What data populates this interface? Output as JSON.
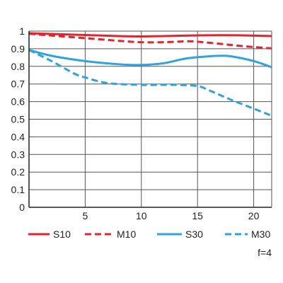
{
  "chart_data": {
    "type": "line",
    "title": "",
    "xlabel": "",
    "ylabel": "",
    "xlim": [
      0,
      21.6
    ],
    "ylim": [
      0,
      1
    ],
    "x_ticks": [
      5,
      10,
      15,
      20
    ],
    "y_ticks": [
      0,
      0.1,
      0.2,
      0.3,
      0.4,
      0.5,
      0.6,
      0.7,
      0.8,
      0.9,
      1
    ],
    "x_tick_labels": [
      "5",
      "10",
      "15",
      "20"
    ],
    "y_tick_labels": [
      "0",
      "0.1",
      "0.2",
      "0.3",
      "0.4",
      "0.5",
      "0.6",
      "0.7",
      "0.8",
      "0.9",
      "1"
    ],
    "grid": true,
    "legend_placement": "bottom",
    "note": "f=4",
    "series": [
      {
        "name": "S10",
        "color": "#e0252f",
        "dash": "solid",
        "x": [
          0,
          2,
          5,
          8,
          10,
          12,
          15,
          17,
          19,
          21.6
        ],
        "values": [
          0.988,
          0.984,
          0.978,
          0.972,
          0.97,
          0.972,
          0.976,
          0.977,
          0.976,
          0.972
        ]
      },
      {
        "name": "M10",
        "color": "#e0252f",
        "dash": "dashed",
        "x": [
          0,
          2,
          5,
          8,
          10,
          12,
          14,
          15,
          17,
          19,
          21.6
        ],
        "values": [
          0.985,
          0.975,
          0.96,
          0.945,
          0.937,
          0.937,
          0.942,
          0.94,
          0.928,
          0.915,
          0.902
        ]
      },
      {
        "name": "S30",
        "color": "#2ea3dd",
        "dash": "solid",
        "x": [
          0,
          2,
          5,
          8,
          10,
          12,
          14,
          16,
          17,
          18,
          20,
          21.6
        ],
        "values": [
          0.893,
          0.86,
          0.83,
          0.812,
          0.808,
          0.818,
          0.845,
          0.857,
          0.86,
          0.857,
          0.83,
          0.795
        ]
      },
      {
        "name": "M30",
        "color": "#2ea3dd",
        "dash": "dashed",
        "x": [
          0,
          2,
          4,
          5,
          7,
          10,
          13,
          15,
          16,
          18,
          20,
          21.6
        ],
        "values": [
          0.893,
          0.83,
          0.76,
          0.737,
          0.705,
          0.695,
          0.695,
          0.688,
          0.665,
          0.61,
          0.56,
          0.52
        ]
      }
    ]
  }
}
